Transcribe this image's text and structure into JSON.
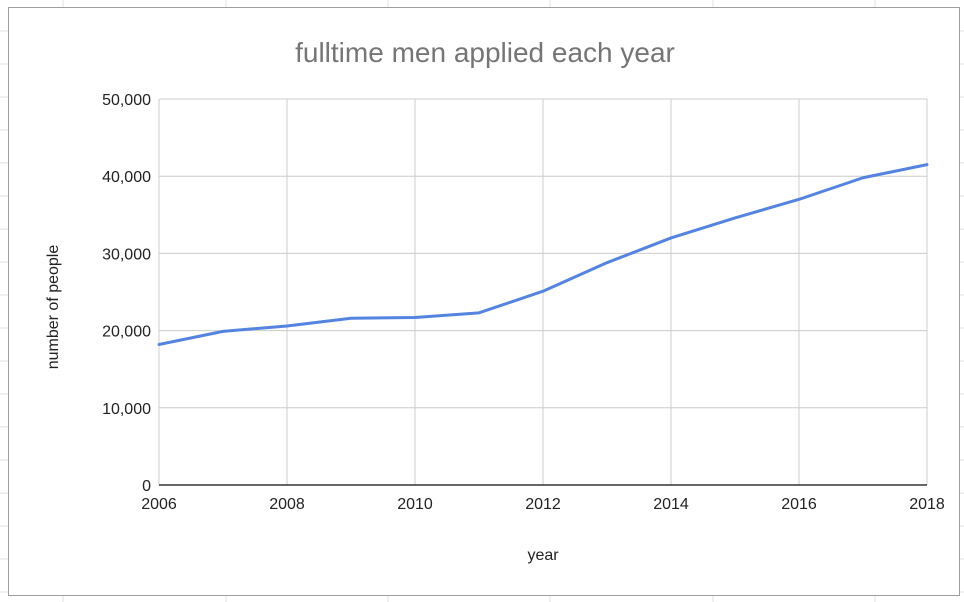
{
  "chart_data": {
    "type": "line",
    "title": "fulltime men applied each year",
    "xlabel": "year",
    "ylabel": "number of people",
    "x": [
      2006,
      2007,
      2008,
      2009,
      2010,
      2011,
      2012,
      2013,
      2014,
      2015,
      2016,
      2017,
      2018
    ],
    "series": [
      {
        "values": [
          18200,
          19900,
          20600,
          21600,
          21700,
          22300,
          25100,
          28800,
          32000,
          34600,
          37000,
          39800,
          41500
        ],
        "color": "#5484e0"
      }
    ],
    "xlim": [
      2006,
      2018
    ],
    "ylim": [
      0,
      50000
    ],
    "x_ticks": [
      "2006",
      "2008",
      "2010",
      "2012",
      "2014",
      "2016",
      "2018"
    ],
    "y_ticks": [
      "0",
      "10,000",
      "20,000",
      "30,000",
      "40,000",
      "50,000"
    ],
    "grid": true,
    "legend": "none"
  }
}
